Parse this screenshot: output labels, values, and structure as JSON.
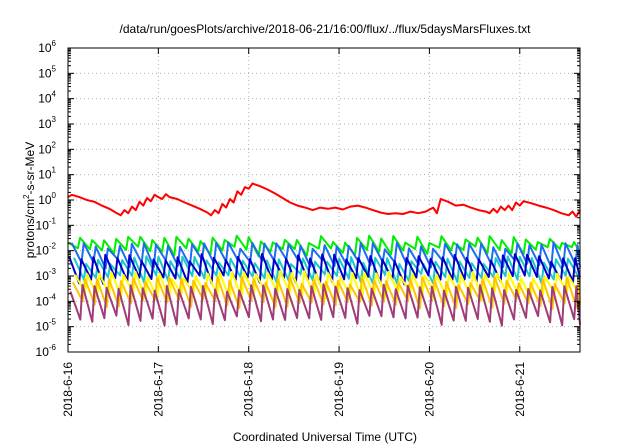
{
  "chart_data": {
    "type": "line",
    "title": "/data/run/goesPlots/archive/2018-06-21/16:00/flux/../flux/5daysMarsFluxes.txt",
    "xlabel": "Coordinated Universal Time (UTC)",
    "ylabel_parts": {
      "before": "protons/cm",
      "sup": "2",
      "after": "-s-sr-MeV"
    },
    "y_scale": "log",
    "ylim": [
      1e-06,
      1000000.0
    ],
    "y_ticks": [
      {
        "mantissa": "10",
        "exp": "-6",
        "value": 1e-06
      },
      {
        "mantissa": "10",
        "exp": "-5",
        "value": 1e-05
      },
      {
        "mantissa": "10",
        "exp": "-4",
        "value": 0.0001
      },
      {
        "mantissa": "10",
        "exp": "-3",
        "value": 0.001
      },
      {
        "mantissa": "10",
        "exp": "-2",
        "value": 0.01
      },
      {
        "mantissa": "10",
        "exp": "-1",
        "value": 0.1
      },
      {
        "mantissa": "10",
        "exp": "0",
        "value": 1
      },
      {
        "mantissa": "10",
        "exp": "1",
        "value": 10
      },
      {
        "mantissa": "10",
        "exp": "2",
        "value": 100
      },
      {
        "mantissa": "10",
        "exp": "3",
        "value": 1000
      },
      {
        "mantissa": "10",
        "exp": "4",
        "value": 10000
      },
      {
        "mantissa": "10",
        "exp": "5",
        "value": 100000
      },
      {
        "mantissa": "10",
        "exp": "6",
        "value": 1000000
      }
    ],
    "xlim": [
      "2018-06-16T00:00",
      "2018-06-21T16:00"
    ],
    "x_ticks": [
      {
        "label": "2018-6-16",
        "value": "2018-06-16T00:00"
      },
      {
        "label": "2018-6-17",
        "value": "2018-06-17T00:00"
      },
      {
        "label": "2018-6-18",
        "value": "2018-06-18T00:00"
      },
      {
        "label": "2018-6-19",
        "value": "2018-06-19T00:00"
      },
      {
        "label": "2018-6-20",
        "value": "2018-06-20T00:00"
      },
      {
        "label": "2018-6-21",
        "value": "2018-06-21T00:00"
      }
    ],
    "grid": true,
    "legend": "none",
    "series": [
      {
        "color": "#ff0000",
        "points": [
          [
            "2018-06-16T00:00",
            1.3
          ],
          [
            "2018-06-16T01:00",
            1.6
          ],
          [
            "2018-06-16T03:00",
            1.3
          ],
          [
            "2018-06-16T05:00",
            1.0
          ],
          [
            "2018-06-16T07:00",
            0.85
          ],
          [
            "2018-06-16T09:00",
            0.6
          ],
          [
            "2018-06-16T11:00",
            0.45
          ],
          [
            "2018-06-16T13:00",
            0.3
          ],
          [
            "2018-06-16T14:00",
            0.25
          ],
          [
            "2018-06-16T15:00",
            0.4
          ],
          [
            "2018-06-16T16:00",
            0.3
          ],
          [
            "2018-06-16T17:00",
            0.55
          ],
          [
            "2018-06-16T18:00",
            0.4
          ],
          [
            "2018-06-16T19:00",
            0.85
          ],
          [
            "2018-06-16T20:00",
            0.6
          ],
          [
            "2018-06-16T21:00",
            1.2
          ],
          [
            "2018-06-16T22:00",
            0.9
          ],
          [
            "2018-06-16T23:00",
            1.6
          ],
          [
            "2018-06-17T00:00",
            1.3
          ],
          [
            "2018-06-17T01:00",
            1.1
          ],
          [
            "2018-06-17T02:00",
            1.7
          ],
          [
            "2018-06-17T03:00",
            1.3
          ],
          [
            "2018-06-17T05:00",
            1.1
          ],
          [
            "2018-06-17T07:00",
            0.8
          ],
          [
            "2018-06-17T09:00",
            0.6
          ],
          [
            "2018-06-17T11:00",
            0.45
          ],
          [
            "2018-06-17T13:00",
            0.32
          ],
          [
            "2018-06-17T14:00",
            0.25
          ],
          [
            "2018-06-17T15:00",
            0.4
          ],
          [
            "2018-06-17T16:00",
            0.3
          ],
          [
            "2018-06-17T17:00",
            0.7
          ],
          [
            "2018-06-17T18:00",
            0.5
          ],
          [
            "2018-06-17T19:00",
            1.1
          ],
          [
            "2018-06-17T20:00",
            0.8
          ],
          [
            "2018-06-17T21:00",
            2.2
          ],
          [
            "2018-06-17T22:00",
            1.6
          ],
          [
            "2018-06-17T23:00",
            3.2
          ],
          [
            "2018-06-18T00:00",
            2.8
          ],
          [
            "2018-06-18T01:00",
            4.5
          ],
          [
            "2018-06-18T03:00",
            3.5
          ],
          [
            "2018-06-18T05:00",
            2.6
          ],
          [
            "2018-06-18T07:00",
            1.8
          ],
          [
            "2018-06-18T09:00",
            1.2
          ],
          [
            "2018-06-18T11:00",
            0.8
          ],
          [
            "2018-06-18T13:00",
            0.6
          ],
          [
            "2018-06-18T15:00",
            0.5
          ],
          [
            "2018-06-18T17:00",
            0.4
          ],
          [
            "2018-06-18T19:00",
            0.5
          ],
          [
            "2018-06-18T21:00",
            0.45
          ],
          [
            "2018-06-18T23:00",
            0.5
          ],
          [
            "2018-06-19T01:00",
            0.42
          ],
          [
            "2018-06-19T03:00",
            0.55
          ],
          [
            "2018-06-19T05:00",
            0.6
          ],
          [
            "2018-06-19T07:00",
            0.5
          ],
          [
            "2018-06-19T09:00",
            0.4
          ],
          [
            "2018-06-19T11:00",
            0.32
          ],
          [
            "2018-06-19T13:00",
            0.28
          ],
          [
            "2018-06-19T15:00",
            0.3
          ],
          [
            "2018-06-19T17:00",
            0.28
          ],
          [
            "2018-06-19T19:00",
            0.35
          ],
          [
            "2018-06-19T21:00",
            0.3
          ],
          [
            "2018-06-19T23:00",
            0.35
          ],
          [
            "2018-06-20T01:00",
            0.5
          ],
          [
            "2018-06-20T02:00",
            0.3
          ],
          [
            "2018-06-20T03:00",
            1.1
          ],
          [
            "2018-06-20T05:00",
            0.85
          ],
          [
            "2018-06-20T07:00",
            0.6
          ],
          [
            "2018-06-20T09:00",
            0.65
          ],
          [
            "2018-06-20T11:00",
            0.5
          ],
          [
            "2018-06-20T13:00",
            0.4
          ],
          [
            "2018-06-20T15:00",
            0.35
          ],
          [
            "2018-06-20T16:00",
            0.3
          ],
          [
            "2018-06-20T17:00",
            0.45
          ],
          [
            "2018-06-20T18:00",
            0.32
          ],
          [
            "2018-06-20T19:00",
            0.55
          ],
          [
            "2018-06-20T20:00",
            0.4
          ],
          [
            "2018-06-20T21:00",
            0.6
          ],
          [
            "2018-06-20T22:00",
            0.4
          ],
          [
            "2018-06-20T23:00",
            0.8
          ],
          [
            "2018-06-21T00:00",
            0.6
          ],
          [
            "2018-06-21T01:00",
            0.9
          ],
          [
            "2018-06-21T03:00",
            0.75
          ],
          [
            "2018-06-21T05:00",
            0.6
          ],
          [
            "2018-06-21T07:00",
            0.5
          ],
          [
            "2018-06-21T09:00",
            0.4
          ],
          [
            "2018-06-21T11:00",
            0.3
          ],
          [
            "2018-06-21T13:00",
            0.25
          ],
          [
            "2018-06-21T14:00",
            0.35
          ],
          [
            "2018-06-21T15:00",
            0.22
          ],
          [
            "2018-06-21T16:00",
            0.4
          ]
        ]
      },
      {
        "color": "#00ee00",
        "spiky": {
          "base_low": 0.011,
          "base_high": 0.03,
          "period_hours": 3.2,
          "phase": 0.0
        }
      },
      {
        "color": "#1e6cf0",
        "spiky": {
          "base_low": 0.0035,
          "base_high": 0.016,
          "period_hours": 3.2,
          "phase": 0.3
        }
      },
      {
        "color": "#1cc8c8",
        "spiky": {
          "base_low": 0.0009,
          "base_high": 0.0045,
          "period_hours": 3.2,
          "phase": 0.5
        }
      },
      {
        "color": "#0000c8",
        "spiky": {
          "base_low": 0.0008,
          "base_high": 0.0055,
          "period_hours": 3.2,
          "phase": 0.1
        }
      },
      {
        "color": "#ffff00",
        "spiky": {
          "base_low": 0.00018,
          "base_high": 0.0012,
          "period_hours": 3.2,
          "phase": 0.6
        }
      },
      {
        "color": "#ffc400",
        "spiky": {
          "base_low": 9e-05,
          "base_high": 0.0007,
          "period_hours": 3.2,
          "phase": 0.4
        }
      },
      {
        "color": "#a03c78",
        "spiky": {
          "base_low": 2e-05,
          "base_high": 0.00035,
          "period_hours": 3.2,
          "phase": 0.2
        }
      }
    ]
  }
}
